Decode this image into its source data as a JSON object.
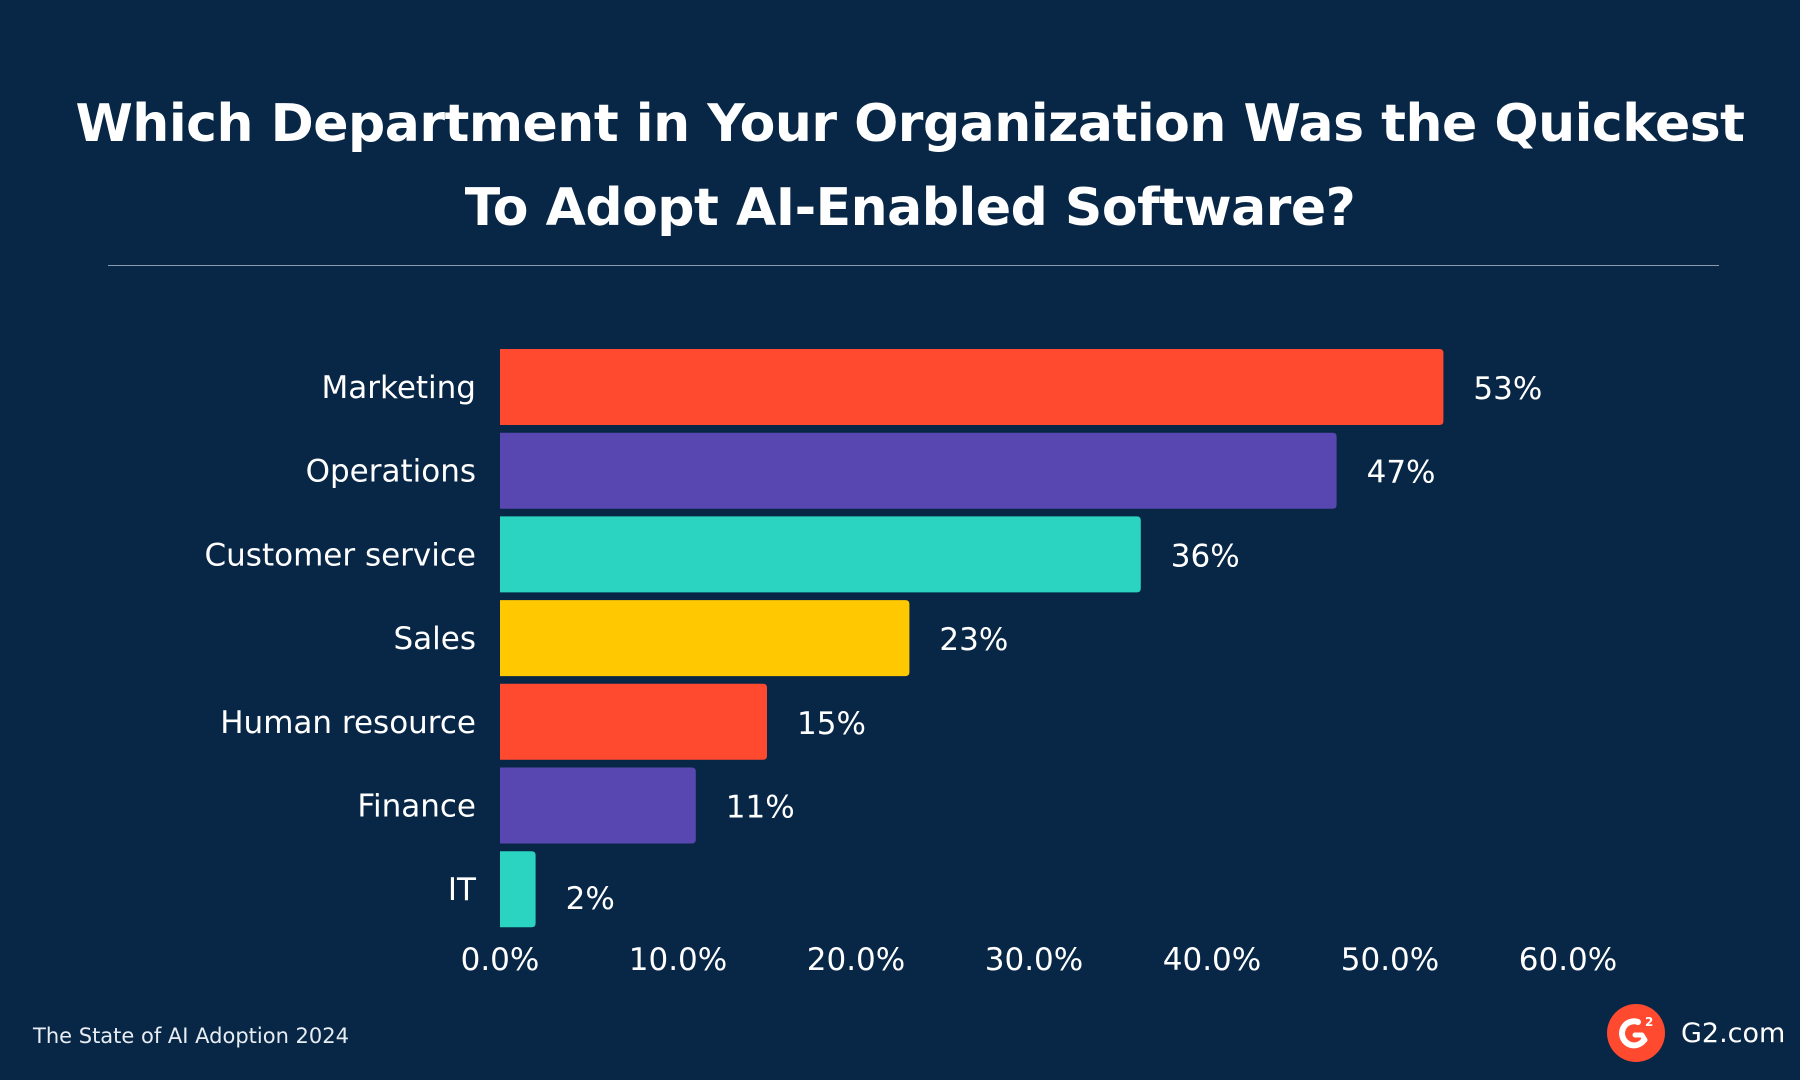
{
  "title": "Which Department in Your Organization Was the Quickest To Adopt AI-Enabled Software?",
  "footer": {
    "source": "The State of AI Adoption 2024",
    "brand": "G2.com",
    "logo_text": "G2"
  },
  "colors": {
    "background": "#082746",
    "red": "#ff4a2f",
    "purple": "#5847b0",
    "teal": "#2ad4c0",
    "yellow": "#ffc800"
  },
  "chart_data": {
    "type": "bar",
    "orientation": "horizontal",
    "title": "Which Department in Your Organization Was the Quickest To Adopt AI-Enabled Software?",
    "categories": [
      "Marketing",
      "Operations",
      "Customer service",
      "Sales",
      "Human resource",
      "Finance",
      "IT"
    ],
    "values": [
      53,
      47,
      36,
      23,
      15,
      11,
      2
    ],
    "data_labels": [
      "53%",
      "47%",
      "36%",
      "23%",
      "15%",
      "11%",
      "2%"
    ],
    "bar_colors": [
      "#ff4a2f",
      "#5847b0",
      "#2ad4c0",
      "#ffc800",
      "#ff4a2f",
      "#5847b0",
      "#2ad4c0"
    ],
    "xlim": [
      0,
      60
    ],
    "x_ticks": [
      0,
      10,
      20,
      30,
      40,
      50,
      60
    ],
    "x_tick_labels": [
      "0.0%",
      "10.0%",
      "20.0%",
      "30.0%",
      "40.0%",
      "50.0%",
      "60.0%"
    ],
    "xlabel": "",
    "ylabel": "",
    "grid": false,
    "legend": "none"
  }
}
